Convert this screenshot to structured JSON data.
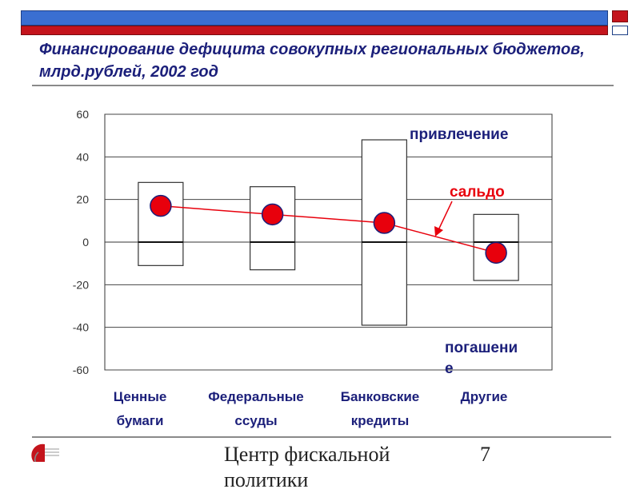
{
  "slide": {
    "title": "Финансирование дефицита совокупных региональных бюджетов, млрд.рублей, 2002 год",
    "footer_text": "Центр фискальной политики",
    "page_number": "7"
  },
  "colors": {
    "header_blue": "#3a6fd1",
    "header_red": "#c4141c",
    "title_color": "#1b1f7a",
    "marker_fill": "#e8000c",
    "marker_stroke": "#1b1f7a",
    "line_color": "#e8000c"
  },
  "chart_data": {
    "type": "bar",
    "title": "",
    "xlabel": "",
    "ylabel": "",
    "ylim": [
      -60,
      60
    ],
    "yticks": [
      60,
      40,
      20,
      0,
      -20,
      -40,
      -60
    ],
    "ytick_labels": [
      "60",
      "40",
      "20",
      "0",
      "-20",
      "-40",
      "-60"
    ],
    "grid": true,
    "categories": [
      "Ценные бумаги",
      "Федеральные ссуды",
      "Банковские кредиты",
      "Другие"
    ],
    "category_lines": [
      [
        "Ценные",
        "бумаги"
      ],
      [
        "Федеральные",
        "ссуды"
      ],
      [
        "Банковские",
        "кредиты"
      ],
      [
        "Другие",
        ""
      ]
    ],
    "series": [
      {
        "name": "привлечение",
        "values": [
          28,
          26,
          48,
          13
        ]
      },
      {
        "name": "погашение",
        "values": [
          -11,
          -13,
          -39,
          -18
        ]
      },
      {
        "name": "сальдо",
        "values": [
          17,
          13,
          9,
          -5
        ]
      }
    ],
    "annotations": [
      {
        "text": "привлечение",
        "color": "#1b1f7a"
      },
      {
        "text": "сальдо",
        "color": "#e8000c"
      },
      {
        "text": "погашение",
        "color": "#1b1f7a"
      }
    ]
  }
}
